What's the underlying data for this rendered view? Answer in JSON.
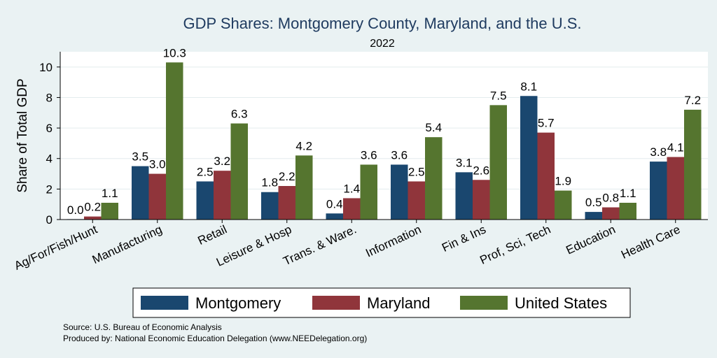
{
  "colors": {
    "background": "#eaf2f3",
    "plot_background": "#ffffff",
    "grid": "#e3ecee",
    "montgomery": "#1a476f",
    "maryland": "#90353b",
    "united_states": "#55752f"
  },
  "chart_data": {
    "type": "bar",
    "title": "GDP Shares: Montgomery County, Maryland, and the U.S.",
    "subtitle": "2022",
    "xlabel": "",
    "ylabel": "Share of Total GDP",
    "ylim": [
      0,
      11
    ],
    "yticks": [
      0,
      2,
      4,
      6,
      8,
      10
    ],
    "grid": true,
    "legend_position": "bottom",
    "categories": [
      "Ag/For/Fish/Hunt",
      "Manufacturing",
      "Retail",
      "Leisure & Hosp",
      "Trans. & Ware.",
      "Information",
      "Fin & Ins",
      "Prof, Sci, Tech",
      "Education",
      "Health Care"
    ],
    "series": [
      {
        "name": "Montgomery",
        "values": [
          0.0,
          3.5,
          2.5,
          1.8,
          0.4,
          3.6,
          3.1,
          8.1,
          0.5,
          3.8
        ],
        "labels": [
          "0.0",
          "3.5",
          "2.5",
          "1.8",
          "0.4",
          "3.6",
          "3.1",
          "8.1",
          "0.5",
          "3.8"
        ]
      },
      {
        "name": "Maryland",
        "values": [
          0.2,
          3.0,
          3.2,
          2.2,
          1.4,
          2.5,
          2.6,
          5.7,
          0.8,
          4.1
        ],
        "labels": [
          "0.2",
          "3.0",
          "3.2",
          "2.2",
          "1.4",
          "2.5",
          "2.6",
          "5.7",
          "0.8",
          "4.1"
        ]
      },
      {
        "name": "United States",
        "values": [
          1.1,
          10.3,
          6.3,
          4.2,
          3.6,
          5.4,
          7.5,
          1.9,
          1.1,
          7.2
        ],
        "labels": [
          "1.1",
          "10.3",
          "6.3",
          "4.2",
          "3.6",
          "5.4",
          "7.5",
          "1.9",
          "1.1",
          "7.2"
        ]
      }
    ],
    "notes": [
      "Source: U.S. Bureau of Economic Analysis",
      "Produced by: National Economic Education Delegation (www.NEEDelegation.org)"
    ]
  }
}
